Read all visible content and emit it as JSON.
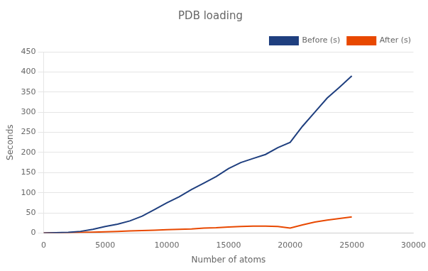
{
  "chart_data": {
    "type": "line",
    "title": "PDB loading",
    "xlabel": "Number of atoms",
    "ylabel": "Seconds",
    "x": [
      0,
      500,
      1000,
      2000,
      3000,
      4000,
      5000,
      6000,
      7000,
      8000,
      9000,
      10000,
      11000,
      12000,
      13000,
      14000,
      15000,
      16000,
      17000,
      18000,
      19000,
      20000,
      21000,
      22000,
      23000,
      24000,
      25000
    ],
    "series": [
      {
        "name": "Before (s)",
        "color": "#1F3F7F",
        "values": [
          0,
          0.2,
          0.5,
          1.5,
          4,
          9,
          16,
          22,
          30,
          42,
          58,
          75,
          90,
          108,
          124,
          140,
          160,
          175,
          185,
          195,
          212,
          225,
          265,
          300,
          335,
          362,
          390
        ]
      },
      {
        "name": "After (s)",
        "color": "#E84800",
        "values": [
          0,
          0.1,
          0.3,
          0.8,
          1.5,
          2,
          3,
          4,
          5,
          6,
          7,
          8,
          9,
          10,
          12,
          13,
          15,
          16,
          17,
          17,
          16,
          12,
          20,
          27,
          32,
          36,
          40
        ]
      }
    ],
    "xlim": [
      0,
      30000
    ],
    "ylim": [
      0,
      450
    ],
    "xticks": [
      0,
      5000,
      10000,
      15000,
      20000,
      25000,
      30000
    ],
    "yticks": [
      0,
      50,
      100,
      150,
      200,
      250,
      300,
      350,
      400,
      450
    ],
    "grid": "y",
    "legend": "upper right"
  }
}
